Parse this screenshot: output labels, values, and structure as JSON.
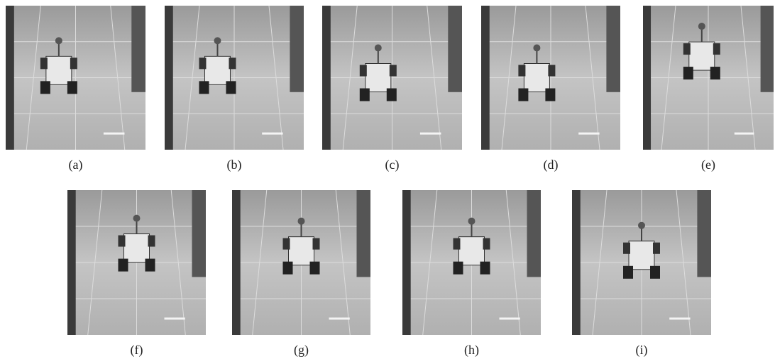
{
  "figure": {
    "panels": [
      {
        "label": "(a)"
      },
      {
        "label": "(b)"
      },
      {
        "label": "(c)"
      },
      {
        "label": "(d)"
      },
      {
        "label": "(e)"
      },
      {
        "label": "(f)"
      },
      {
        "label": "(g)"
      },
      {
        "label": "(h)"
      },
      {
        "label": "(i)"
      }
    ]
  }
}
